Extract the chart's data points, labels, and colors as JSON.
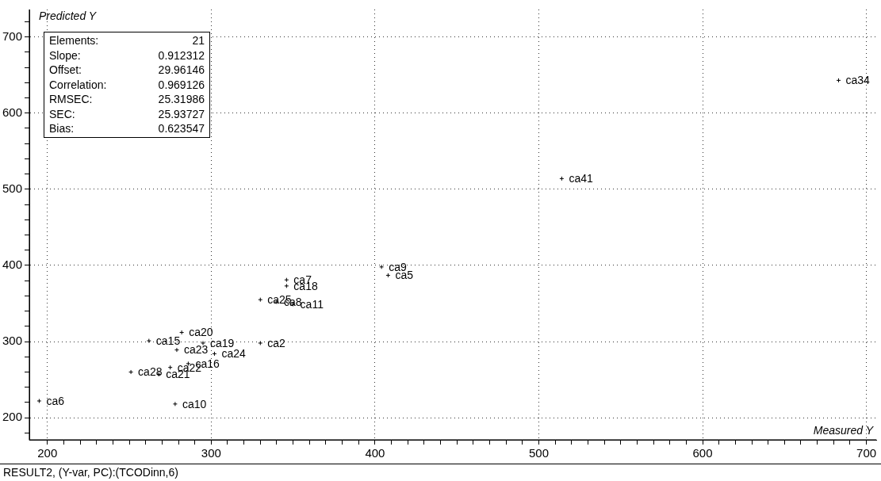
{
  "chart_data": {
    "type": "scatter",
    "xlabel": "Measured Y",
    "ylabel": "Predicted Y",
    "x": [
      683,
      514,
      404,
      408,
      346,
      346,
      330,
      340,
      350,
      282,
      262,
      279,
      295,
      302,
      330,
      275,
      286,
      251,
      268,
      195,
      278
    ],
    "values": [
      643,
      514,
      398,
      387,
      381,
      373,
      355,
      352,
      349,
      312,
      301,
      289,
      298,
      284,
      298,
      266,
      271,
      260,
      257,
      222,
      218
    ],
    "value_labels": [
      "ca34",
      "ca41",
      "ca9",
      "ca5",
      "ca7",
      "ca18",
      "ca25",
      "ca8",
      "ca11",
      "ca20",
      "ca15",
      "ca23",
      "ca19",
      "ca24",
      "ca2",
      "ca22",
      "ca16",
      "ca28",
      "ca21",
      "ca6",
      "ca10"
    ],
    "color": "#000000",
    "marker": "cross",
    "grid": true,
    "legend": false,
    "xlim": [
      189,
      706
    ],
    "ylim": [
      171,
      736
    ],
    "xticks": [
      200,
      {
        "value": 210,
        "label": null
      },
      {
        "value": 220,
        "label": null
      },
      {
        "value": 230,
        "label": null
      },
      {
        "value": 240,
        "label": null
      },
      {
        "value": 250,
        "label": null
      },
      {
        "value": 260,
        "label": null
      },
      {
        "value": 270,
        "label": null
      },
      {
        "value": 280,
        "label": null
      },
      {
        "value": 290,
        "label": null
      },
      300,
      {
        "value": 310,
        "label": null
      },
      {
        "value": 320,
        "label": null
      },
      {
        "value": 330,
        "label": null
      },
      {
        "value": 340,
        "label": null
      },
      {
        "value": 350,
        "label": null
      },
      {
        "value": 360,
        "label": null
      },
      {
        "value": 370,
        "label": null
      },
      {
        "value": 380,
        "label": null
      },
      {
        "value": 390,
        "label": null
      },
      400,
      {
        "value": 410,
        "label": null
      },
      {
        "value": 420,
        "label": null
      },
      {
        "value": 430,
        "label": null
      },
      {
        "value": 440,
        "label": null
      },
      {
        "value": 450,
        "label": null
      },
      {
        "value": 460,
        "label": null
      },
      {
        "value": 470,
        "label": null
      },
      {
        "value": 480,
        "label": null
      },
      {
        "value": 490,
        "label": null
      },
      500,
      {
        "value": 510,
        "label": null
      },
      {
        "value": 520,
        "label": null
      },
      {
        "value": 530,
        "label": null
      },
      {
        "value": 540,
        "label": null
      },
      {
        "value": 550,
        "label": null
      },
      {
        "value": 560,
        "label": null
      },
      {
        "value": 570,
        "label": null
      },
      {
        "value": 580,
        "label": null
      },
      {
        "value": 590,
        "label": null
      },
      600,
      {
        "value": 610,
        "label": null
      },
      {
        "value": 620,
        "label": null
      },
      {
        "value": 630,
        "label": null
      },
      {
        "value": 640,
        "label": null
      },
      {
        "value": 650,
        "label": null
      },
      {
        "value": 660,
        "label": null
      },
      {
        "value": 670,
        "label": null
      },
      {
        "value": 680,
        "label": null
      },
      {
        "value": 690,
        "label": null
      },
      700
    ],
    "yticks": [
      {
        "value": 180,
        "label": null
      },
      200,
      {
        "value": 220,
        "label": null
      },
      {
        "value": 240,
        "label": null
      },
      {
        "value": 260,
        "label": null
      },
      {
        "value": 280,
        "label": null
      },
      300,
      {
        "value": 320,
        "label": null
      },
      {
        "value": 340,
        "label": null
      },
      {
        "value": 360,
        "label": null
      },
      {
        "value": 380,
        "label": null
      },
      400,
      {
        "value": 420,
        "label": null
      },
      {
        "value": 440,
        "label": null
      },
      {
        "value": 460,
        "label": null
      },
      {
        "value": 480,
        "label": null
      },
      500,
      {
        "value": 520,
        "label": null
      },
      {
        "value": 540,
        "label": null
      },
      {
        "value": 560,
        "label": null
      },
      {
        "value": 580,
        "label": null
      },
      600,
      {
        "value": 620,
        "label": null
      },
      {
        "value": 640,
        "label": null
      },
      {
        "value": 660,
        "label": null
      },
      {
        "value": 680,
        "label": null
      },
      700,
      {
        "value": 720,
        "label": null
      }
    ],
    "annotations": [
      "Elements: 21",
      "Slope: 0.912312",
      "Offset: 29.96146",
      "Correlation: 0.969126",
      "RMSEC: 25.31986",
      "SEC: 25.93727",
      "Bias: 0.623547",
      "RESULT2, (Y-var, PC):(TCODinn,6)"
    ]
  }
}
